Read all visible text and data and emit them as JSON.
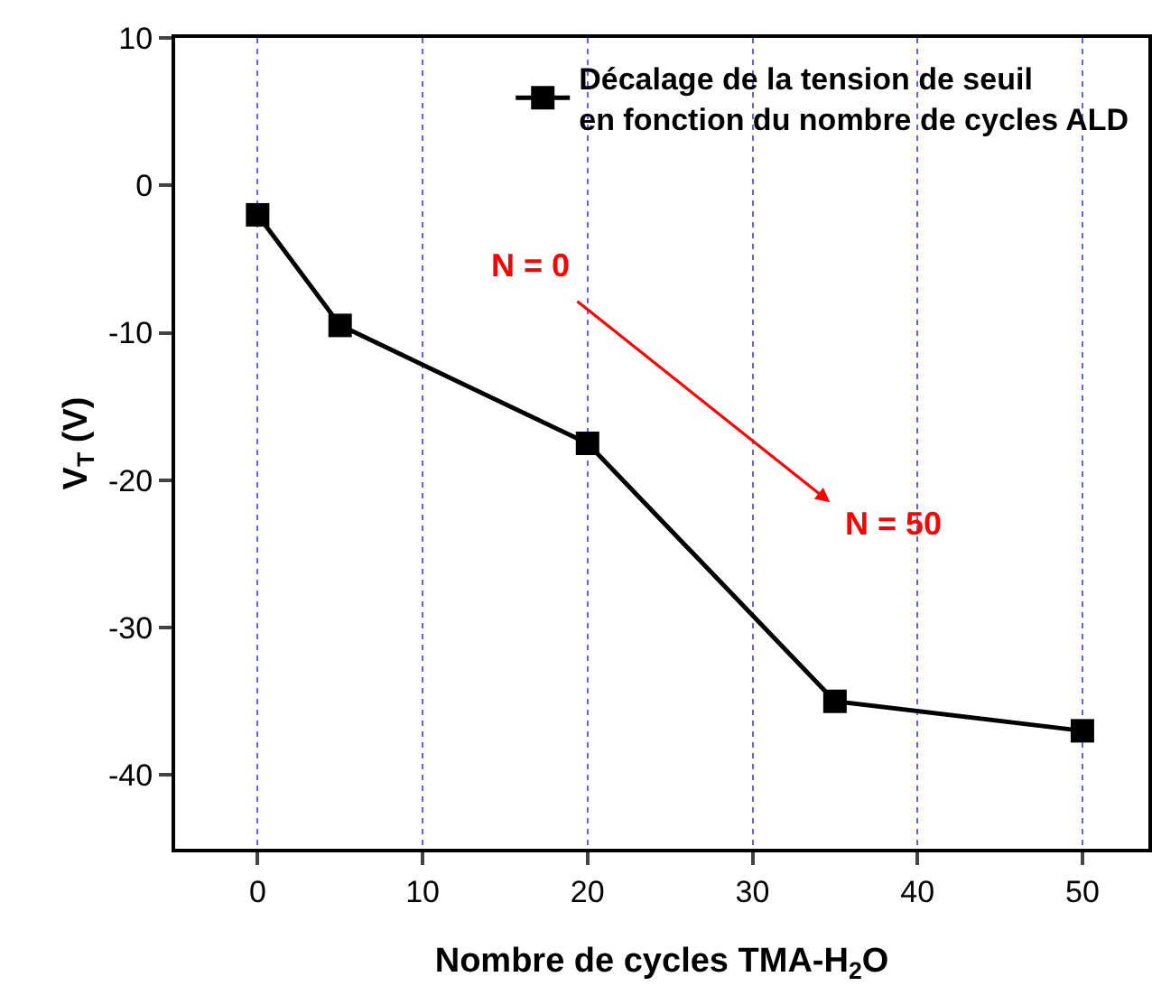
{
  "chart_data": {
    "type": "line",
    "xlabel": "Nombre de cycles TMA-H$_{2}$O",
    "ylabel": "V$_{T}$ (V)",
    "x": [
      0,
      5,
      20,
      35,
      50
    ],
    "series": [
      {
        "name": "Décalage de la tension de seuil\nen fonction du nombre de cycles ALD",
        "color": "#000000",
        "values": [
          -2,
          -9.5,
          -17.5,
          -35,
          -37
        ]
      }
    ],
    "xlim": [
      -5,
      54
    ],
    "xticks": [
      0,
      10,
      20,
      30,
      40,
      50
    ],
    "ylim": [
      -45,
      10
    ],
    "yticks": [
      -40,
      -30,
      -20,
      -10,
      0,
      10
    ],
    "grid": "x",
    "legend": "top right",
    "marker": "square",
    "line_style": "solid",
    "annotations": [
      "N = 0",
      "N = 50"
    ]
  }
}
